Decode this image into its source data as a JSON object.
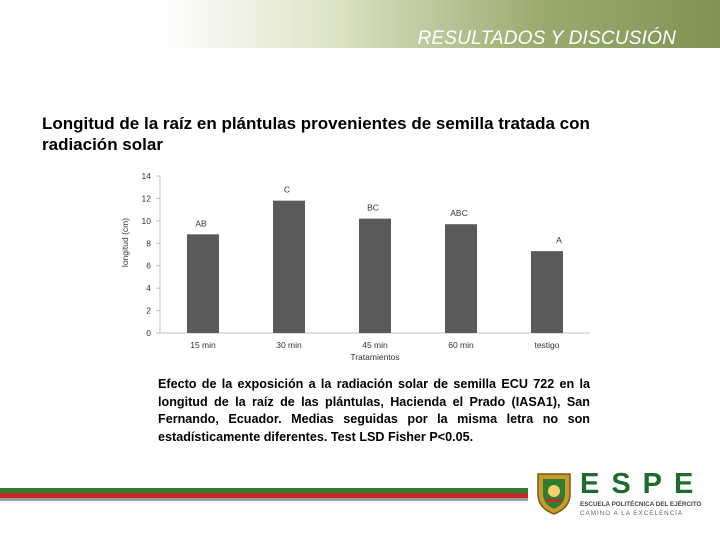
{
  "header": {
    "title": "RESULTADOS Y DISCUSIÓN"
  },
  "slide": {
    "title": "Longitud de la raíz en plántulas provenientes de semilla tratada con radiación solar",
    "caption": "Efecto de la exposición a la radiación solar de semilla ECU 722 en la longitud de la raíz de las plántulas, Hacienda el Prado (IASA1), San Fernando, Ecuador. Medias seguidas por la misma letra no son estadísticamente diferentes. Test LSD Fisher P<0.05."
  },
  "chart_data": {
    "type": "bar",
    "categories": [
      "15 min",
      "30 min",
      "45 min",
      "60 min",
      "testigo"
    ],
    "values": [
      8.8,
      11.8,
      10.2,
      9.7,
      7.3
    ],
    "data_labels": [
      "AB",
      "C",
      "BC",
      "ABC",
      "A"
    ],
    "xlabel": "Tratamientos",
    "ylabel": "longitud (cm)",
    "ylim": [
      0,
      14
    ],
    "yticks": [
      0,
      2,
      4,
      6,
      8,
      10,
      12,
      14
    ],
    "grid": false,
    "bar_color": "#5a5a5a"
  },
  "footer": {
    "logo_text": "ESPE",
    "logo_line1": "ESCUELA POLITÉCNICA DEL EJÉRCITO",
    "logo_line2": "CAMINO A LA EXCELENCIA",
    "stripe_colors": [
      "#2e7d32",
      "#c62828",
      "#9e9e9e"
    ]
  }
}
